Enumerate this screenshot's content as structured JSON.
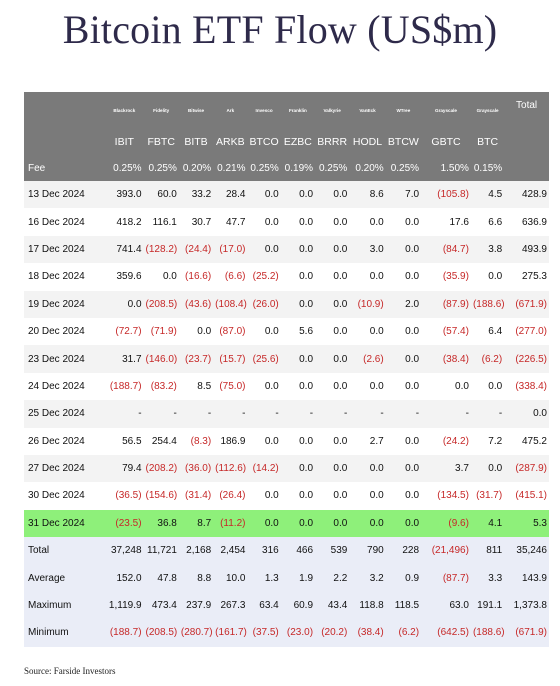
{
  "title": "Bitcoin ETF Flow (US$m)",
  "source": "Source: Farside Investors",
  "chart_data": {
    "type": "table",
    "issuers": [
      "Blackrock",
      "Fidelity",
      "Bitwise",
      "Ark",
      "Invesco",
      "Franklin",
      "Valkyrie",
      "VanEck",
      "WTree",
      "Grayscale",
      "Grayscale"
    ],
    "tickers": [
      "IBIT",
      "FBTC",
      "BITB",
      "ARKB",
      "BTCO",
      "EZBC",
      "BRRR",
      "HODL",
      "BTCW",
      "GBTC",
      "BTC"
    ],
    "total_header": "Total",
    "fee_label": "Fee",
    "fees": [
      "0.25%",
      "0.25%",
      "0.20%",
      "0.21%",
      "0.25%",
      "0.19%",
      "0.25%",
      "0.20%",
      "0.25%",
      "1.50%",
      "0.15%",
      ""
    ],
    "rows": [
      {
        "date": "13 Dec 2024",
        "values": [
          "393.0",
          "60.0",
          "33.2",
          "28.4",
          "0.0",
          "0.0",
          "0.0",
          "8.6",
          "7.0",
          "(105.8)",
          "4.5",
          "428.9"
        ]
      },
      {
        "date": "16 Dec 2024",
        "values": [
          "418.2",
          "116.1",
          "30.7",
          "47.7",
          "0.0",
          "0.0",
          "0.0",
          "0.0",
          "0.0",
          "17.6",
          "6.6",
          "636.9"
        ]
      },
      {
        "date": "17 Dec 2024",
        "values": [
          "741.4",
          "(128.2)",
          "(24.4)",
          "(17.0)",
          "0.0",
          "0.0",
          "0.0",
          "3.0",
          "0.0",
          "(84.7)",
          "3.8",
          "493.9"
        ]
      },
      {
        "date": "18 Dec 2024",
        "values": [
          "359.6",
          "0.0",
          "(16.6)",
          "(6.6)",
          "(25.2)",
          "0.0",
          "0.0",
          "0.0",
          "0.0",
          "(35.9)",
          "0.0",
          "275.3"
        ]
      },
      {
        "date": "19 Dec 2024",
        "values": [
          "0.0",
          "(208.5)",
          "(43.6)",
          "(108.4)",
          "(26.0)",
          "0.0",
          "0.0",
          "(10.9)",
          "2.0",
          "(87.9)",
          "(188.6)",
          "(671.9)"
        ]
      },
      {
        "date": "20 Dec 2024",
        "values": [
          "(72.7)",
          "(71.9)",
          "0.0",
          "(87.0)",
          "0.0",
          "5.6",
          "0.0",
          "0.0",
          "0.0",
          "(57.4)",
          "6.4",
          "(277.0)"
        ]
      },
      {
        "date": "23 Dec 2024",
        "values": [
          "31.7",
          "(146.0)",
          "(23.7)",
          "(15.7)",
          "(25.6)",
          "0.0",
          "0.0",
          "(2.6)",
          "0.0",
          "(38.4)",
          "(6.2)",
          "(226.5)"
        ]
      },
      {
        "date": "24 Dec 2024",
        "values": [
          "(188.7)",
          "(83.2)",
          "8.5",
          "(75.0)",
          "0.0",
          "0.0",
          "0.0",
          "0.0",
          "0.0",
          "0.0",
          "0.0",
          "(338.4)"
        ]
      },
      {
        "date": "25 Dec 2024",
        "values": [
          "-",
          "-",
          "-",
          "-",
          "-",
          "-",
          "-",
          "-",
          "-",
          "-",
          "-",
          "0.0"
        ]
      },
      {
        "date": "26 Dec 2024",
        "values": [
          "56.5",
          "254.4",
          "(8.3)",
          "186.9",
          "0.0",
          "0.0",
          "0.0",
          "2.7",
          "0.0",
          "(24.2)",
          "7.2",
          "475.2"
        ]
      },
      {
        "date": "27 Dec 2024",
        "values": [
          "79.4",
          "(208.2)",
          "(36.0)",
          "(112.6)",
          "(14.2)",
          "0.0",
          "0.0",
          "0.0",
          "0.0",
          "3.7",
          "0.0",
          "(287.9)"
        ]
      },
      {
        "date": "30 Dec 2024",
        "values": [
          "(36.5)",
          "(154.6)",
          "(31.4)",
          "(26.4)",
          "0.0",
          "0.0",
          "0.0",
          "0.0",
          "0.0",
          "(134.5)",
          "(31.7)",
          "(415.1)"
        ]
      },
      {
        "date": "31 Dec 2024",
        "values": [
          "(23.5)",
          "36.8",
          "8.7",
          "(11.2)",
          "0.0",
          "0.0",
          "0.0",
          "0.0",
          "0.0",
          "(9.6)",
          "4.1",
          "5.3"
        ]
      }
    ],
    "highlight_row": "31 Dec 2024",
    "stats": [
      {
        "label": "Total",
        "values": [
          "37,248",
          "11,721",
          "2,168",
          "2,454",
          "316",
          "466",
          "539",
          "790",
          "228",
          "(21,496)",
          "811",
          "35,246"
        ]
      },
      {
        "label": "Average",
        "values": [
          "152.0",
          "47.8",
          "8.8",
          "10.0",
          "1.3",
          "1.9",
          "2.2",
          "3.2",
          "0.9",
          "(87.7)",
          "3.3",
          "143.9"
        ]
      },
      {
        "label": "Maximum",
        "values": [
          "1,119.9",
          "473.4",
          "237.9",
          "267.3",
          "63.4",
          "60.9",
          "43.4",
          "118.8",
          "118.5",
          "63.0",
          "191.1",
          "1,373.8"
        ]
      },
      {
        "label": "Minimum",
        "values": [
          "(188.7)",
          "(208.5)",
          "(280.7)",
          "(161.7)",
          "(37.5)",
          "(23.0)",
          "(20.2)",
          "(38.4)",
          "(6.2)",
          "(642.5)",
          "(188.6)",
          "(671.9)"
        ]
      }
    ]
  },
  "colors": {
    "header_bg": "#7a7a7a",
    "highlight": "#8ef07a",
    "negative": "#c62828",
    "stat_bg": "#eaedf7",
    "title": "#2e2a4a"
  }
}
